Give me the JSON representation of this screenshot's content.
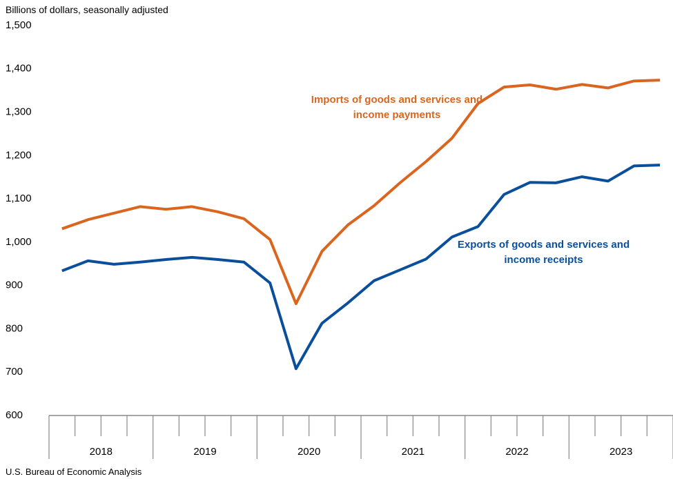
{
  "chart_data": {
    "type": "line",
    "y_axis_label": "Billions of dollars, seasonally adjusted",
    "source": "U.S. Bureau of Economic Analysis",
    "categories": [
      null,
      null,
      null,
      null,
      null,
      null,
      null,
      null,
      null,
      null,
      null,
      null,
      null,
      null,
      null,
      null,
      null,
      null,
      null,
      null,
      null,
      null,
      null,
      null
    ],
    "x_groups": [
      "2018",
      "2019",
      "2020",
      "2021",
      "2022",
      "2023"
    ],
    "series": [
      {
        "name": "Imports of goods and services and income payments",
        "color": "#d9651f",
        "values": [
          1031,
          1052,
          1067,
          1082,
          1076,
          1082,
          1070,
          1054,
          1006,
          858,
          979,
          1040,
          1084,
          1137,
          1186,
          1240,
          1320,
          1358,
          1363,
          1353,
          1364,
          1356,
          1372,
          1374
        ]
      },
      {
        "name": "Exports of goods and services and income receipts",
        "color": "#0b4f9c",
        "values": [
          934,
          957,
          949,
          954,
          960,
          965,
          960,
          954,
          906,
          708,
          813,
          860,
          911,
          936,
          961,
          1012,
          1036,
          1110,
          1138,
          1137,
          1151,
          1141,
          1176,
          1178
        ]
      }
    ],
    "ylim": [
      600,
      1500
    ],
    "yticks": [
      600,
      700,
      800,
      900,
      {
        "value": 1000,
        "label": "1,000"
      },
      {
        "value": 1100,
        "label": "1,100"
      },
      {
        "value": 1200,
        "label": "1,200"
      },
      {
        "value": 1300,
        "label": "1,300"
      },
      {
        "value": 1400,
        "label": "1,400"
      },
      {
        "value": 1500,
        "label": "1,500"
      }
    ],
    "grid": false
  }
}
